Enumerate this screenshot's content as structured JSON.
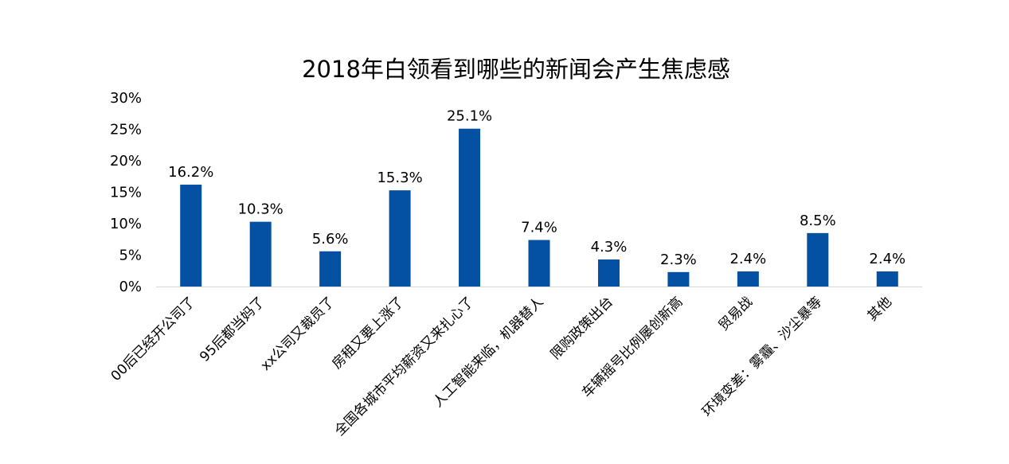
{
  "chart_data": {
    "type": "bar",
    "title": "2018年白领看到哪些的新闻会产生焦虑感",
    "xlabel": "",
    "ylabel": "",
    "categories": [
      "00后已经开公司了",
      "95后都当妈了",
      "xx公司又裁员了",
      "房租又要上涨了",
      "全国各城市平均薪资又来扎心了",
      "人工智能来临，机器替人",
      "限购政策出台",
      "车辆摇号比例屡创新高",
      "贸易战",
      "环境变差：雾霾、沙尘暴等",
      "其他"
    ],
    "values": [
      16.2,
      10.3,
      5.6,
      15.3,
      25.1,
      7.4,
      4.3,
      2.3,
      2.4,
      8.5,
      2.4
    ],
    "data_labels": [
      "16.2%",
      "10.3%",
      "5.6%",
      "15.3%",
      "25.1%",
      "7.4%",
      "4.3%",
      "2.3%",
      "2.4%",
      "8.5%",
      "2.4%"
    ],
    "ylim": [
      0,
      30
    ],
    "yticks": [
      0,
      5,
      10,
      15,
      20,
      25,
      30
    ],
    "ytick_labels": [
      "0%",
      "5%",
      "10%",
      "15%",
      "20%",
      "25%",
      "30%"
    ],
    "grid": false,
    "legend": "none",
    "bar_color": "#0450a3"
  }
}
